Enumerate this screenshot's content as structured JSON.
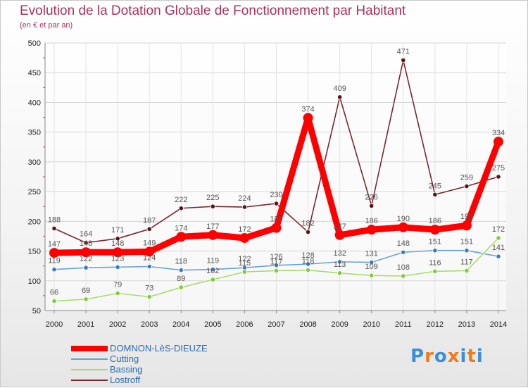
{
  "title": "Evolution de la Dotation Globale de Fonctionnement par Habitant",
  "subtitle": "(en € et par an)",
  "logo": {
    "text": "Proxiti",
    "colors": [
      "#3a8fd9",
      "#f07b1a",
      "#3a8fd9",
      "#f07b1a",
      "#3a8fd9",
      "#f07b1a",
      "#3a8fd9"
    ]
  },
  "chart_data": {
    "type": "line",
    "title": "Evolution de la Dotation Globale de Fonctionnement par Habitant",
    "ylabel": "(en € et par an)",
    "xlabel": "",
    "ylim": [
      50,
      500
    ],
    "yticks": [
      50,
      100,
      150,
      200,
      250,
      300,
      350,
      400,
      450,
      500
    ],
    "grid": true,
    "categories": [
      "2000",
      "2001",
      "2002",
      "2003",
      "2004",
      "2005",
      "2006",
      "2007",
      "2008",
      "2009",
      "2010",
      "2011",
      "2012",
      "2013",
      "2014"
    ],
    "series": [
      {
        "name": "DOMNON-LèS-DIEUZE",
        "color": "#ff0000",
        "marker": "#ff0000",
        "label_color": "#555555",
        "values": [
          147,
          148,
          148,
          149,
          174,
          177,
          172,
          189,
          374,
          177,
          186,
          190,
          186,
          193,
          334
        ]
      },
      {
        "name": "Cutting",
        "color": "#6a9fd4",
        "marker": "#3b7cc4",
        "label_color": "#555555",
        "values": [
          119,
          122,
          123,
          124,
          118,
          119,
          122,
          126,
          128,
          132,
          131,
          148,
          151,
          151,
          141
        ]
      },
      {
        "name": "Bassing",
        "color": "#a4dc6a",
        "marker": "#7fcc3a",
        "label_color": "#555555",
        "values": [
          66,
          69,
          79,
          73,
          89,
          102,
          115,
          117,
          118,
          113,
          109,
          108,
          116,
          117,
          172
        ]
      },
      {
        "name": "Lostroff",
        "color": "#7a2630",
        "marker": "#5a1418",
        "label_color": "#555555",
        "values": [
          188,
          164,
          171,
          187,
          222,
          225,
          224,
          230,
          182,
          409,
          226,
          471,
          245,
          259,
          275
        ]
      }
    ],
    "legend_position": "bottom-left"
  }
}
